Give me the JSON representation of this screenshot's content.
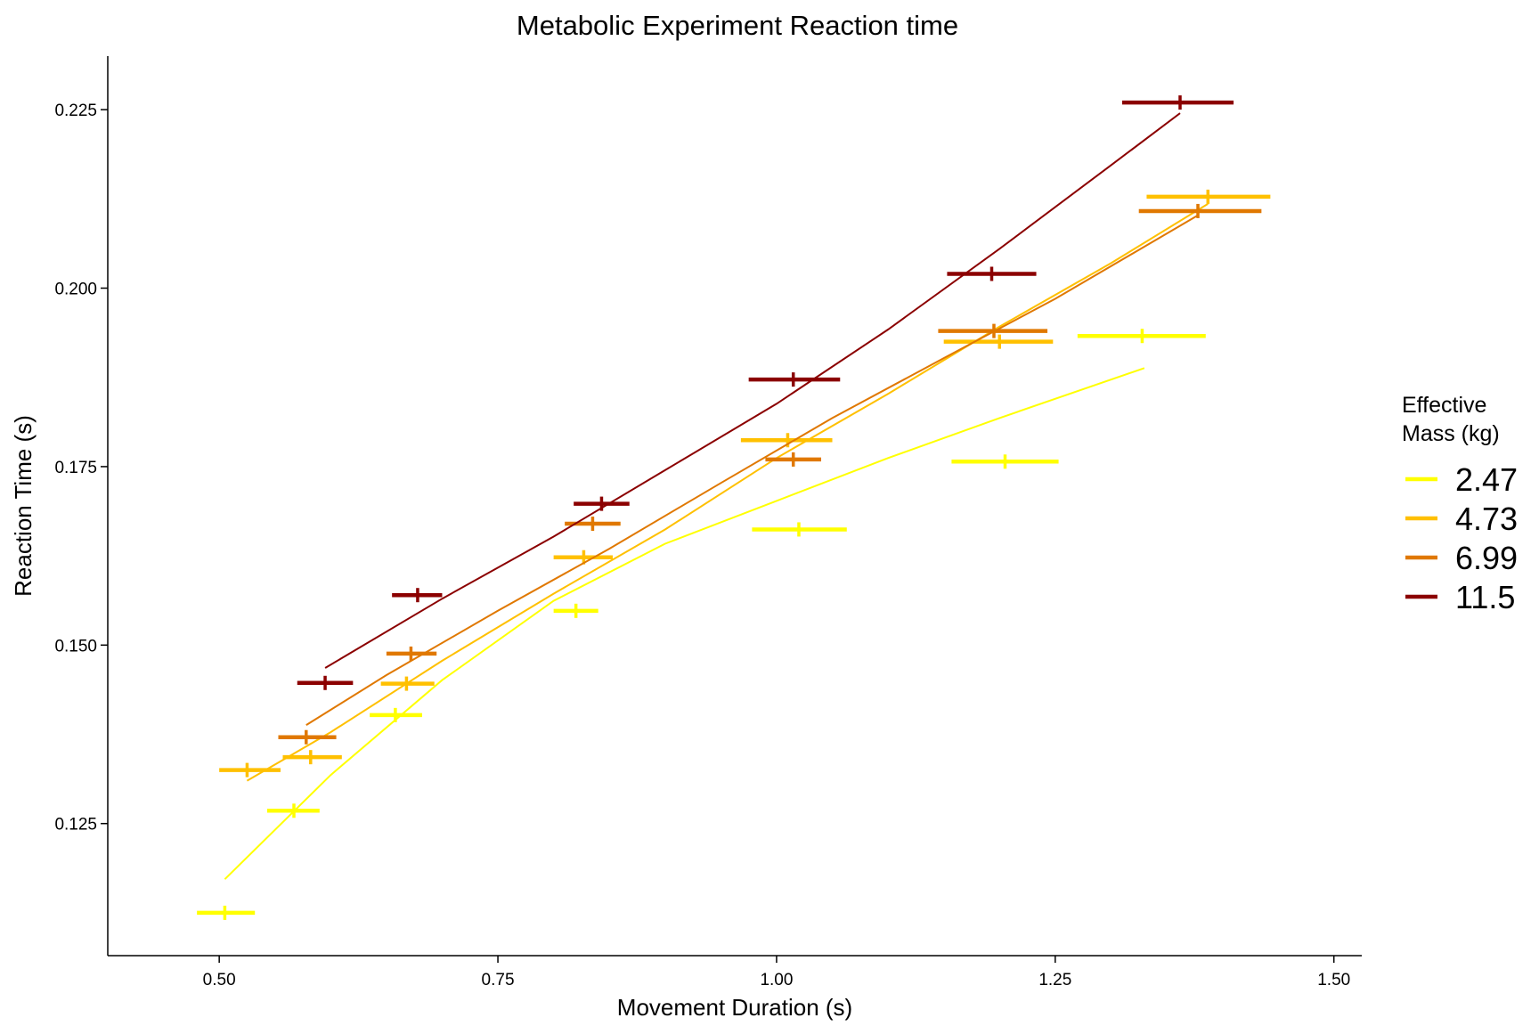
{
  "chart_data": {
    "type": "scatter",
    "title": "Metabolic Experiment Reaction time",
    "xlabel": "Movement Duration (s)",
    "ylabel": "Reaction Time (s)",
    "xlim": [
      0.4,
      1.525
    ],
    "ylim": [
      0.1065,
      0.2325
    ],
    "x_ticks": [
      0.5,
      0.75,
      1.0,
      1.25,
      1.5
    ],
    "x_tick_labels": [
      "0.50",
      "0.75",
      "1.00",
      "1.25",
      "1.50"
    ],
    "y_ticks": [
      0.125,
      0.15,
      0.175,
      0.2,
      0.225
    ],
    "y_tick_labels": [
      "0.125",
      "0.150",
      "0.175",
      "0.200",
      "0.225"
    ],
    "grid": false,
    "legend": {
      "title_lines": [
        "Effective",
        "Mass (kg)"
      ],
      "position": "right"
    },
    "series": [
      {
        "name": "2.47",
        "color": "#FFFF00",
        "points": [
          {
            "x": 0.505,
            "y": 0.1125,
            "xmin": 0.48,
            "xmax": 0.532
          },
          {
            "x": 0.567,
            "y": 0.1268,
            "xmin": 0.543,
            "xmax": 0.59
          },
          {
            "x": 0.658,
            "y": 0.1402,
            "xmin": 0.635,
            "xmax": 0.682
          },
          {
            "x": 0.82,
            "y": 0.1548,
            "xmin": 0.8,
            "xmax": 0.84
          },
          {
            "x": 1.02,
            "y": 0.1662,
            "xmin": 0.978,
            "xmax": 1.063
          },
          {
            "x": 1.205,
            "y": 0.1757,
            "xmin": 1.157,
            "xmax": 1.253
          },
          {
            "x": 1.328,
            "y": 0.1933,
            "xmin": 1.27,
            "xmax": 1.385
          }
        ],
        "trend": [
          [
            0.505,
            0.1172
          ],
          [
            0.6,
            0.1318
          ],
          [
            0.7,
            0.1451
          ],
          [
            0.8,
            0.1562
          ],
          [
            0.9,
            0.1642
          ],
          [
            1.0,
            0.1702
          ],
          [
            1.1,
            0.1762
          ],
          [
            1.2,
            0.1818
          ],
          [
            1.33,
            0.1888
          ]
        ]
      },
      {
        "name": "4.73",
        "color": "#FFC000",
        "points": [
          {
            "x": 0.525,
            "y": 0.1325,
            "xmin": 0.5,
            "xmax": 0.555
          },
          {
            "x": 0.582,
            "y": 0.1343,
            "xmin": 0.557,
            "xmax": 0.61
          },
          {
            "x": 0.668,
            "y": 0.1446,
            "xmin": 0.645,
            "xmax": 0.693
          },
          {
            "x": 0.827,
            "y": 0.1623,
            "xmin": 0.8,
            "xmax": 0.853
          },
          {
            "x": 1.01,
            "y": 0.1787,
            "xmin": 0.968,
            "xmax": 1.05
          },
          {
            "x": 1.2,
            "y": 0.1925,
            "xmin": 1.15,
            "xmax": 1.248
          },
          {
            "x": 1.387,
            "y": 0.2128,
            "xmin": 1.332,
            "xmax": 1.443
          }
        ],
        "trend": [
          [
            0.525,
            0.131
          ],
          [
            0.6,
            0.1378
          ],
          [
            0.7,
            0.1478
          ],
          [
            0.8,
            0.1572
          ],
          [
            0.9,
            0.1662
          ],
          [
            1.0,
            0.1762
          ],
          [
            1.1,
            0.1852
          ],
          [
            1.2,
            0.1946
          ],
          [
            1.3,
            0.2035
          ],
          [
            1.387,
            0.2118
          ]
        ]
      },
      {
        "name": "6.99",
        "color": "#E07800",
        "points": [
          {
            "x": 0.578,
            "y": 0.1371,
            "xmin": 0.553,
            "xmax": 0.605
          },
          {
            "x": 0.672,
            "y": 0.1488,
            "xmin": 0.65,
            "xmax": 0.695
          },
          {
            "x": 0.835,
            "y": 0.167,
            "xmin": 0.81,
            "xmax": 0.86
          },
          {
            "x": 1.015,
            "y": 0.176,
            "xmin": 0.99,
            "xmax": 1.04
          },
          {
            "x": 1.195,
            "y": 0.194,
            "xmin": 1.145,
            "xmax": 1.243
          },
          {
            "x": 1.378,
            "y": 0.2108,
            "xmin": 1.325,
            "xmax": 1.435
          }
        ],
        "trend": [
          [
            0.578,
            0.1388
          ],
          [
            0.65,
            0.1458
          ],
          [
            0.75,
            0.1548
          ],
          [
            0.85,
            0.1635
          ],
          [
            0.95,
            0.1727
          ],
          [
            1.05,
            0.1818
          ],
          [
            1.15,
            0.1902
          ],
          [
            1.25,
            0.1985
          ],
          [
            1.378,
            0.2102
          ]
        ]
      },
      {
        "name": "11.5",
        "color": "#8B0000",
        "points": [
          {
            "x": 0.595,
            "y": 0.1447,
            "xmin": 0.57,
            "xmax": 0.62
          },
          {
            "x": 0.678,
            "y": 0.157,
            "xmin": 0.655,
            "xmax": 0.7
          },
          {
            "x": 0.843,
            "y": 0.1698,
            "xmin": 0.818,
            "xmax": 0.868
          },
          {
            "x": 1.015,
            "y": 0.1872,
            "xmin": 0.975,
            "xmax": 1.057
          },
          {
            "x": 1.193,
            "y": 0.202,
            "xmin": 1.153,
            "xmax": 1.233
          },
          {
            "x": 1.362,
            "y": 0.226,
            "xmin": 1.31,
            "xmax": 1.41
          }
        ],
        "trend": [
          [
            0.595,
            0.1468
          ],
          [
            0.7,
            0.1565
          ],
          [
            0.8,
            0.1652
          ],
          [
            0.9,
            0.1745
          ],
          [
            1.0,
            0.1838
          ],
          [
            1.1,
            0.1942
          ],
          [
            1.2,
            0.2055
          ],
          [
            1.3,
            0.2172
          ],
          [
            1.362,
            0.2245
          ]
        ]
      }
    ]
  }
}
